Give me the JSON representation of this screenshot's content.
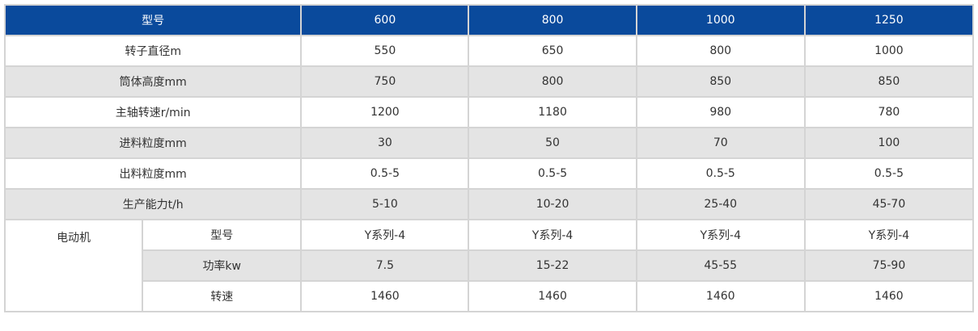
{
  "table": {
    "header": {
      "label": "型号",
      "models": [
        "600",
        "800",
        "1000",
        "1250"
      ]
    },
    "rows": [
      {
        "label": "转子直径m",
        "values": [
          "550",
          "650",
          "800",
          "1000"
        ]
      },
      {
        "label": "筒体高度mm",
        "values": [
          "750",
          "800",
          "850",
          "850"
        ]
      },
      {
        "label": "主轴转速r/min",
        "values": [
          "1200",
          "1180",
          "980",
          "780"
        ]
      },
      {
        "label": "进料粒度mm",
        "values": [
          "30",
          "50",
          "70",
          "100"
        ]
      },
      {
        "label": "出料粒度mm",
        "values": [
          "0.5-5",
          "0.5-5",
          "0.5-5",
          "0.5-5"
        ]
      },
      {
        "label": "生产能力t/h",
        "values": [
          "5-10",
          "10-20",
          "25-40",
          "45-70"
        ]
      }
    ],
    "motor": {
      "group_label": "电动机",
      "rows": [
        {
          "label": "型号",
          "values": [
            "Y系列-4",
            "Y系列-4",
            "Y系列-4",
            "Y系列-4"
          ]
        },
        {
          "label": "功率kw",
          "values": [
            "7.5",
            "15-22",
            "45-55",
            "75-90"
          ]
        },
        {
          "label": "转速",
          "values": [
            "1460",
            "1460",
            "1460",
            "1460"
          ]
        }
      ]
    }
  },
  "colors": {
    "header_bg": "#0a4a9c",
    "header_text": "#ffffff",
    "row_alt_bg": "#e4e4e4",
    "border": "#d4d4d4"
  }
}
